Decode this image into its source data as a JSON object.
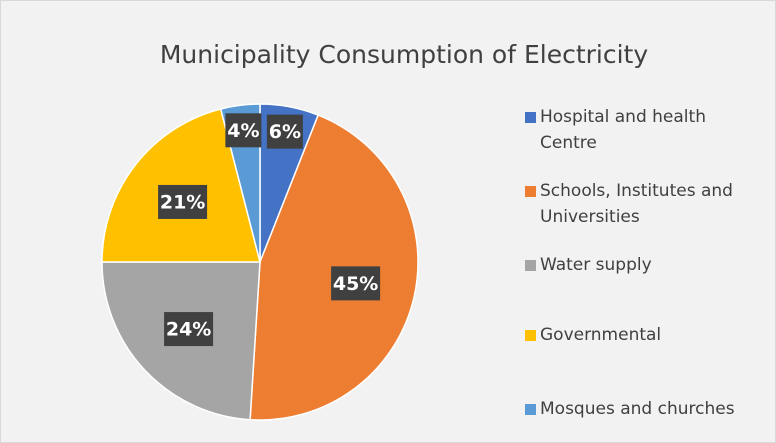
{
  "chart_data": {
    "type": "pie",
    "title": "Municipality Consumption of Electricity",
    "categories": [
      "Hospital and health Centre",
      "Schools, Institutes and Universities",
      "Water supply",
      "Governmental",
      "Mosques and churches"
    ],
    "values": [
      6,
      45,
      24,
      21,
      4
    ],
    "value_labels": [
      "6%",
      "45%",
      "24%",
      "21%",
      "4%"
    ],
    "colors": [
      "#4472c4",
      "#ed7d31",
      "#a5a5a5",
      "#ffc000",
      "#5b9bd5"
    ],
    "legend": "right"
  }
}
